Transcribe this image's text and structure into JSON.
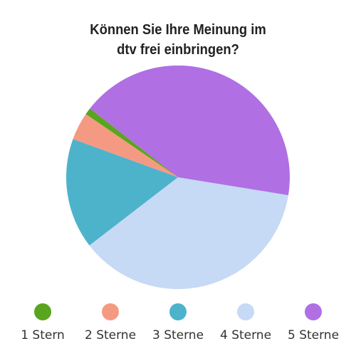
{
  "chart_data": {
    "type": "pie",
    "title": "Können Sie Ihre Meinung im dtv frei einbringen?",
    "categories": [
      "1 Stern",
      "2 Sterne",
      "3 Sterne",
      "4 Sterne",
      "5 Sterne"
    ],
    "values": [
      1,
      4,
      16,
      37,
      42
    ],
    "colors": [
      "#5aa51f",
      "#f59a82",
      "#4db3cb",
      "#c6d9f5",
      "#b06fe3"
    ]
  }
}
